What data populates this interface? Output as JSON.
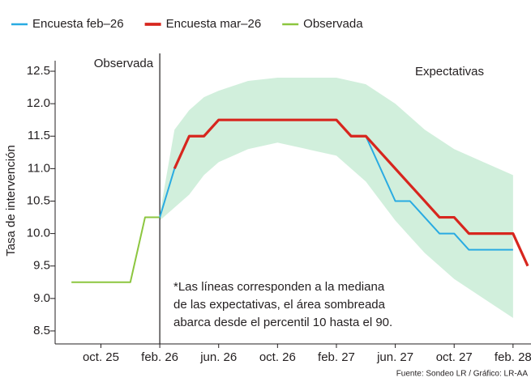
{
  "chart_data": {
    "type": "line",
    "y_label": "Tasa de intervención",
    "ylim": [
      8.3,
      12.6
    ],
    "yticks": [
      {
        "value": 8.5,
        "label": "8.5"
      },
      {
        "value": 9,
        "label": "9.0"
      },
      {
        "value": 9.5,
        "label": "9.5"
      },
      {
        "value": 10,
        "label": "10.0"
      },
      {
        "value": 10.5,
        "label": "10.5"
      },
      {
        "value": 11,
        "label": "11.0"
      },
      {
        "value": 11.5,
        "label": "11.5"
      },
      {
        "value": 12,
        "label": "12.0"
      },
      {
        "value": 12.5,
        "label": "12.5"
      }
    ],
    "xlim": [
      "2025-07",
      "2028-03"
    ],
    "xticks": [
      {
        "value": "2025-10",
        "label": "oct. 25"
      },
      {
        "value": "2026-02",
        "label": "feb. 26"
      },
      {
        "value": "2026-06",
        "label": "jun. 26"
      },
      {
        "value": "2026-10",
        "label": "oct. 26"
      },
      {
        "value": "2027-02",
        "label": "feb. 27"
      },
      {
        "value": "2027-06",
        "label": "jun. 27"
      },
      {
        "value": "2027-10",
        "label": "oct. 27"
      },
      {
        "value": "2028-02",
        "label": "feb. 28"
      }
    ],
    "divider_x": "2026-02",
    "region_labels": [
      "Observada",
      "Expectativas"
    ],
    "band": {
      "color": "#c9ecd6",
      "x": [
        "2026-02",
        "2026-03",
        "2026-04",
        "2026-05",
        "2026-06",
        "2026-08",
        "2026-10",
        "2026-12",
        "2027-02",
        "2027-04",
        "2027-06",
        "2027-08",
        "2027-10",
        "2027-12",
        "2028-02"
      ],
      "upper": [
        10.3,
        11.6,
        11.9,
        12.1,
        12.2,
        12.35,
        12.4,
        12.4,
        12.4,
        12.3,
        12.0,
        11.6,
        11.3,
        11.1,
        10.9
      ],
      "lower": [
        10.2,
        10.4,
        10.6,
        10.9,
        11.1,
        11.3,
        11.4,
        11.3,
        11.2,
        10.8,
        10.2,
        9.7,
        9.3,
        9.0,
        8.7
      ]
    },
    "series": [
      {
        "name": "Encuesta feb–26",
        "color": "#29abe2",
        "x": [
          "2026-02",
          "2026-03",
          "2026-04",
          "2026-05",
          "2026-06",
          "2026-08",
          "2026-10",
          "2026-12",
          "2027-02",
          "2027-03",
          "2027-04",
          "2027-05",
          "2027-06",
          "2027-07",
          "2027-08",
          "2027-09",
          "2027-10",
          "2027-11",
          "2027-12",
          "2028-01",
          "2028-02"
        ],
        "values": [
          10.25,
          11.0,
          11.5,
          11.5,
          11.75,
          11.75,
          11.75,
          11.75,
          11.75,
          11.5,
          11.5,
          11.0,
          10.5,
          10.5,
          10.25,
          10.0,
          10.0,
          9.75,
          9.75,
          9.75,
          9.75
        ]
      },
      {
        "name": "Encuesta mar–26",
        "color": "#d7261e",
        "x": [
          "2026-03",
          "2026-04",
          "2026-05",
          "2026-06",
          "2026-08",
          "2026-10",
          "2026-12",
          "2027-02",
          "2027-03",
          "2027-04",
          "2027-05",
          "2027-06",
          "2027-07",
          "2027-08",
          "2027-09",
          "2027-10",
          "2027-11",
          "2027-12",
          "2028-01",
          "2028-02",
          "2028-03"
        ],
        "values": [
          11.0,
          11.5,
          11.5,
          11.75,
          11.75,
          11.75,
          11.75,
          11.75,
          11.5,
          11.5,
          11.25,
          11.0,
          10.75,
          10.5,
          10.25,
          10.25,
          10.0,
          10.0,
          10.0,
          10.0,
          9.5
        ]
      },
      {
        "name": "Observada",
        "color": "#8cc63f",
        "x": [
          "2025-08",
          "2025-09",
          "2025-10",
          "2025-11",
          "2025-12",
          "2026-01",
          "2026-02"
        ],
        "values": [
          9.25,
          9.25,
          9.25,
          9.25,
          9.25,
          10.25,
          10.25
        ]
      }
    ],
    "note": [
      "*Las líneas corresponden a la mediana",
      "de las expectativas, el área sombreada",
      "abarca desde el percentil 10 hasta el 90."
    ],
    "source": "Fuente: Sondeo LR / Gráfico: LR-AA"
  }
}
